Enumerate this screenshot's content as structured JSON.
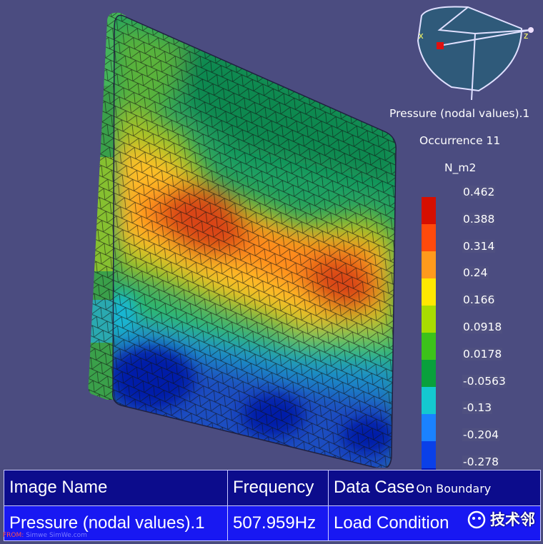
{
  "legend": {
    "title": "Pressure (nodal values).1",
    "occurrence": "Occurrence 11",
    "unit": "N_m2",
    "ticks": [
      "0.462",
      "0.388",
      "0.314",
      "0.24",
      "0.166",
      "0.0918",
      "0.0178",
      "-0.0563",
      "-0.13",
      "-0.204",
      "-0.278"
    ],
    "colors": [
      "#d60f00",
      "#ff4a0c",
      "#ff9a1c",
      "#ffe800",
      "#a8dc00",
      "#3cc21a",
      "#09a03c",
      "#14c8d0",
      "#1a82ff",
      "#0a40e8",
      "#0014b4"
    ]
  },
  "axis": {
    "x_label": "x",
    "z_label": "z"
  },
  "table": {
    "headers": [
      "Image Name",
      "Frequency",
      "Data Case",
      "On Boundary"
    ],
    "values": [
      "Pressure (nodal values).1",
      "507.959Hz",
      "Load Condition",
      ""
    ]
  },
  "watermark": "技术邻",
  "credit": {
    "from": "FROM:",
    "site_a": "Simwe",
    "site_b": "SimWe.com"
  }
}
